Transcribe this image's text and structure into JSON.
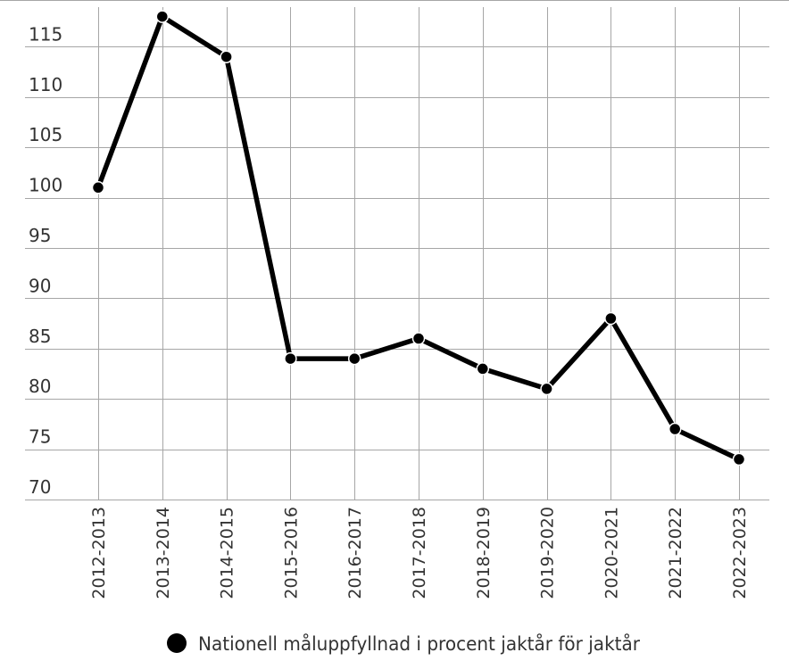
{
  "chart_data": {
    "type": "line",
    "title": "",
    "xlabel": "",
    "ylabel": "",
    "categories": [
      "2012-2013",
      "2013-2014",
      "2014-2015",
      "2015-2016",
      "2016-2017",
      "2017-2018",
      "2018-2019",
      "2019-2020",
      "2020-2021",
      "2021-2022",
      "2022-2023"
    ],
    "series": [
      {
        "name": "Nationell måluppfyllnad i procent jaktår för jaktår",
        "values": [
          101,
          118,
          114,
          84,
          84,
          86,
          83,
          81,
          88,
          77,
          74
        ],
        "color": "#000000"
      }
    ],
    "ylim": [
      70,
      120
    ],
    "yticks": [
      70,
      75,
      80,
      85,
      90,
      95,
      100,
      105,
      110,
      115
    ],
    "grid": true,
    "legend_position": "bottom-center"
  }
}
